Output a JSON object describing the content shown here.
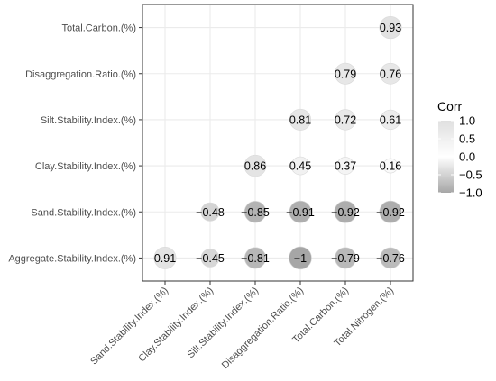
{
  "chart_data": {
    "type": "heatmap",
    "variant": "correlation-circle-lower",
    "x_labels": [
      "Sand.Stability.Index.(%)",
      "Clay.Stability.Index.(%)",
      "Silt.Stability.Index.(%)",
      "Disaggregation.Ratio.(%)",
      "Total.Carbon.(%)",
      "Total.Nitrogen.(%)"
    ],
    "y_labels": [
      "Aggregate.Stability.Index.(%)",
      "Sand.Stability.Index.(%)",
      "Clay.Stability.Index.(%)",
      "Silt.Stability.Index.(%)",
      "Disaggregation.Ratio.(%)",
      "Total.Carbon.(%)"
    ],
    "cells": [
      {
        "x": 0,
        "y": 0,
        "value": 0.91,
        "label": "0.91"
      },
      {
        "x": 1,
        "y": 0,
        "value": -0.45,
        "label": "−0.45"
      },
      {
        "x": 2,
        "y": 0,
        "value": -0.81,
        "label": "−0.81"
      },
      {
        "x": 3,
        "y": 0,
        "value": -1,
        "label": "−1"
      },
      {
        "x": 4,
        "y": 0,
        "value": -0.79,
        "label": "−0.79"
      },
      {
        "x": 5,
        "y": 0,
        "value": -0.76,
        "label": "−0.76"
      },
      {
        "x": 1,
        "y": 1,
        "value": -0.48,
        "label": "−0.48"
      },
      {
        "x": 2,
        "y": 1,
        "value": -0.85,
        "label": "−0.85"
      },
      {
        "x": 3,
        "y": 1,
        "value": -0.91,
        "label": "−0.91"
      },
      {
        "x": 4,
        "y": 1,
        "value": -0.92,
        "label": "−0.92"
      },
      {
        "x": 5,
        "y": 1,
        "value": -0.92,
        "label": "−0.92"
      },
      {
        "x": 2,
        "y": 2,
        "value": 0.86,
        "label": "0.86"
      },
      {
        "x": 3,
        "y": 2,
        "value": 0.45,
        "label": "0.45"
      },
      {
        "x": 4,
        "y": 2,
        "value": 0.37,
        "label": "0.37"
      },
      {
        "x": 5,
        "y": 2,
        "value": 0.16,
        "label": "0.16"
      },
      {
        "x": 3,
        "y": 3,
        "value": 0.81,
        "label": "0.81"
      },
      {
        "x": 4,
        "y": 3,
        "value": 0.72,
        "label": "0.72"
      },
      {
        "x": 5,
        "y": 3,
        "value": 0.61,
        "label": "0.61"
      },
      {
        "x": 4,
        "y": 4,
        "value": 0.79,
        "label": "0.79"
      },
      {
        "x": 5,
        "y": 4,
        "value": 0.76,
        "label": "0.76"
      },
      {
        "x": 5,
        "y": 5,
        "value": 0.93,
        "label": "0.93"
      }
    ],
    "legend": {
      "title": "Corr",
      "placement": "right",
      "range": [
        -1,
        1
      ],
      "ticks": [
        {
          "value": 1.0,
          "label": "1.0"
        },
        {
          "value": 0.5,
          "label": "0.5"
        },
        {
          "value": 0.0,
          "label": "0.0"
        },
        {
          "value": -0.5,
          "label": "−0.5"
        },
        {
          "value": -1.0,
          "label": "−1.0"
        }
      ]
    },
    "colors": {
      "low": "#a6a6a6",
      "mid": "#ffffff",
      "high": "#e0e0e0",
      "circle_outline": "#d9d9d9",
      "grid": "#ebebeb",
      "panel_border": "#333333"
    },
    "grid": true
  }
}
